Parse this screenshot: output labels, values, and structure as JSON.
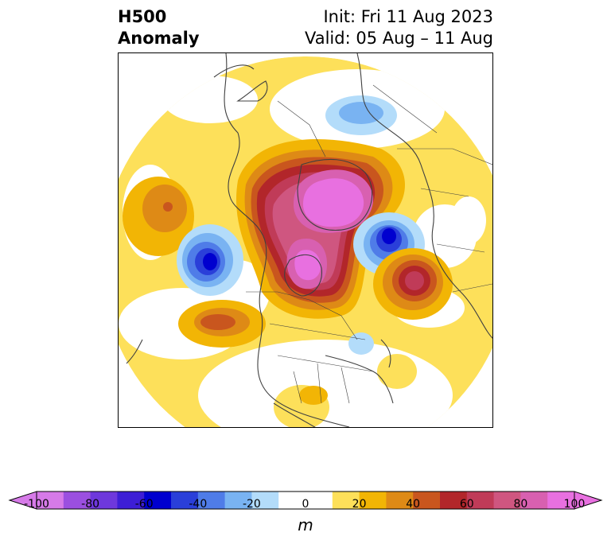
{
  "title": {
    "left_line1": "H500",
    "left_line2": "Anomaly",
    "right_line1": "Init: Fri 11 Aug 2023",
    "right_line2": "Valid: 05 Aug – 11 Aug"
  },
  "colorbar": {
    "unit": "m",
    "ticks": [
      "-100",
      "-80",
      "-60",
      "-40",
      "-20",
      "0",
      "20",
      "40",
      "60",
      "80",
      "100"
    ],
    "min": -100,
    "max": 100,
    "step": 10,
    "colors": [
      "#d67ae8",
      "#9b4fe0",
      "#6e38dc",
      "#3d1ed6",
      "#0000cf",
      "#2a3fd9",
      "#4f7ce8",
      "#79b3f2",
      "#b3dcfa",
      "#ffffff",
      "#ffffff",
      "#fde05a",
      "#f2b505",
      "#de8a16",
      "#c9561e",
      "#b2262a",
      "#c03b58",
      "#cf5680",
      "#d860b0",
      "#e870e0"
    ],
    "extend": "both"
  },
  "map": {
    "projection": "north-polar-stereographic",
    "field": "500 hPa geopotential height anomaly",
    "anomaly_centers": [
      {
        "region": "north-pole-greenland",
        "sign": "positive",
        "value_m": 100
      },
      {
        "region": "siberia-kara-sea",
        "sign": "negative",
        "value_m": -60
      },
      {
        "region": "gulf-of-alaska",
        "sign": "negative",
        "value_m": -60
      },
      {
        "region": "north-pacific",
        "sign": "positive",
        "value_m": 50
      },
      {
        "region": "eastern-europe",
        "sign": "positive",
        "value_m": 70
      },
      {
        "region": "north-atlantic",
        "sign": "negative",
        "value_m": -20
      }
    ]
  }
}
